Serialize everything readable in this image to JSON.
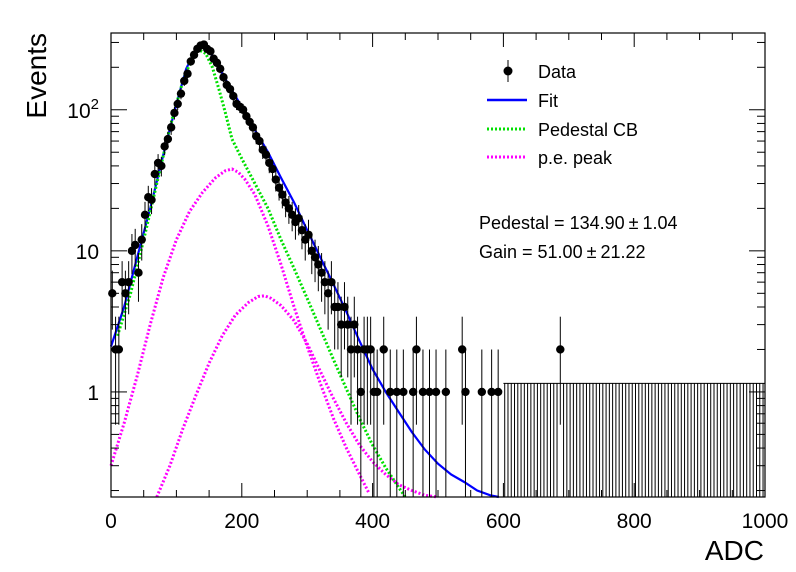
{
  "chart_data": {
    "type": "scatter",
    "xlabel": "ADC",
    "ylabel": "Events",
    "xlim": [
      0,
      1000
    ],
    "ylim": [
      0.18,
      350
    ],
    "yscale": "log",
    "grid": false,
    "legend_position": "top-right",
    "x_ticks": [
      {
        "value": 0,
        "label": "0"
      },
      {
        "value": 200,
        "label": "200"
      },
      {
        "value": 400,
        "label": "400"
      },
      {
        "value": 600,
        "label": "600"
      },
      {
        "value": 800,
        "label": "800"
      },
      {
        "value": 1000,
        "label": "1000"
      }
    ],
    "y_ticks": [
      {
        "value": 1,
        "label": "1"
      },
      {
        "value": 10,
        "label": "10"
      },
      {
        "value": 100,
        "label": "10",
        "exp": "2"
      }
    ],
    "legend": [
      {
        "label": "Data",
        "style": "marker",
        "color": "#000000"
      },
      {
        "label": "Fit",
        "style": "solid",
        "color": "#0000ff"
      },
      {
        "label": "Pedestal CB",
        "style": "dotted",
        "color": "#00e000"
      },
      {
        "label": "p.e. peak",
        "style": "dotted",
        "color": "#ff00ff"
      }
    ],
    "annotations": [
      {
        "text": "Pedestal = 134.90",
        "pm": "±",
        "err": "1.04"
      },
      {
        "text": "Gain = 51.00",
        "pm": "±",
        "err": "21.22"
      }
    ],
    "series": [
      {
        "name": "Data",
        "kind": "points",
        "color": "#000000",
        "bin_width": 5,
        "points": [
          [
            2,
            5
          ],
          [
            7,
            2
          ],
          [
            12,
            2
          ],
          [
            17,
            6
          ],
          [
            22,
            5
          ],
          [
            27,
            6
          ],
          [
            32,
            10
          ],
          [
            37,
            11
          ],
          [
            42,
            7
          ],
          [
            47,
            12
          ],
          [
            52,
            18
          ],
          [
            57,
            24
          ],
          [
            62,
            23
          ],
          [
            67,
            35
          ],
          [
            72,
            42
          ],
          [
            77,
            40
          ],
          [
            82,
            55
          ],
          [
            87,
            62
          ],
          [
            92,
            75
          ],
          [
            97,
            95
          ],
          [
            102,
            110
          ],
          [
            107,
            130
          ],
          [
            112,
            160
          ],
          [
            117,
            180
          ],
          [
            122,
            220
          ],
          [
            127,
            245
          ],
          [
            132,
            270
          ],
          [
            137,
            285
          ],
          [
            142,
            290
          ],
          [
            147,
            270
          ],
          [
            152,
            260
          ],
          [
            157,
            230
          ],
          [
            162,
            215
          ],
          [
            167,
            195
          ],
          [
            172,
            170
          ],
          [
            177,
            150
          ],
          [
            182,
            140
          ],
          [
            187,
            125
          ],
          [
            192,
            110
          ],
          [
            197,
            105
          ],
          [
            202,
            100
          ],
          [
            207,
            90
          ],
          [
            212,
            82
          ],
          [
            217,
            75
          ],
          [
            222,
            65
          ],
          [
            227,
            60
          ],
          [
            232,
            52
          ],
          [
            237,
            48
          ],
          [
            242,
            42
          ],
          [
            247,
            38
          ],
          [
            252,
            32
          ],
          [
            257,
            28
          ],
          [
            262,
            25
          ],
          [
            267,
            22
          ],
          [
            272,
            20
          ],
          [
            277,
            18
          ],
          [
            282,
            16
          ],
          [
            287,
            17
          ],
          [
            292,
            14
          ],
          [
            297,
            12
          ],
          [
            302,
            13
          ],
          [
            307,
            10
          ],
          [
            312,
            9
          ],
          [
            317,
            8
          ],
          [
            322,
            7
          ],
          [
            327,
            6
          ],
          [
            332,
            5
          ],
          [
            337,
            6
          ],
          [
            342,
            4
          ],
          [
            347,
            4
          ],
          [
            352,
            3
          ],
          [
            357,
            4
          ],
          [
            362,
            3
          ],
          [
            367,
            2
          ],
          [
            372,
            3
          ],
          [
            377,
            2
          ],
          [
            382,
            1
          ],
          [
            387,
            2
          ],
          [
            392,
            2
          ],
          [
            397,
            2
          ],
          [
            402,
            1
          ],
          [
            407,
            1
          ],
          [
            417,
            2
          ],
          [
            427,
            1
          ],
          [
            437,
            1
          ],
          [
            447,
            1
          ],
          [
            462,
            1
          ],
          [
            467,
            2
          ],
          [
            477,
            1
          ],
          [
            487,
            1
          ],
          [
            497,
            1
          ],
          [
            512,
            1
          ],
          [
            537,
            2
          ],
          [
            542,
            1
          ],
          [
            567,
            1
          ],
          [
            582,
            1
          ],
          [
            592,
            1
          ],
          [
            687,
            2
          ]
        ]
      },
      {
        "name": "Fit",
        "kind": "curve",
        "color": "#0000ff",
        "points": [
          [
            0,
            2.1
          ],
          [
            20,
            4
          ],
          [
            40,
            9
          ],
          [
            60,
            20
          ],
          [
            80,
            48
          ],
          [
            100,
            110
          ],
          [
            115,
            195
          ],
          [
            130,
            270
          ],
          [
            140,
            285
          ],
          [
            150,
            265
          ],
          [
            160,
            220
          ],
          [
            180,
            150
          ],
          [
            200,
            105
          ],
          [
            220,
            72
          ],
          [
            240,
            50
          ],
          [
            260,
            33
          ],
          [
            280,
            22
          ],
          [
            300,
            14
          ],
          [
            320,
            9
          ],
          [
            340,
            5.8
          ],
          [
            360,
            3.7
          ],
          [
            380,
            2.3
          ],
          [
            400,
            1.45
          ],
          [
            420,
            1.0
          ],
          [
            440,
            0.72
          ],
          [
            460,
            0.52
          ],
          [
            480,
            0.39
          ],
          [
            500,
            0.31
          ],
          [
            520,
            0.26
          ],
          [
            540,
            0.23
          ],
          [
            560,
            0.2
          ],
          [
            580,
            0.185
          ],
          [
            593,
            0.178
          ]
        ]
      },
      {
        "name": "Pedestal CB",
        "kind": "curve",
        "color": "#00e000",
        "points": [
          [
            10,
            2.5
          ],
          [
            30,
            5
          ],
          [
            50,
            12
          ],
          [
            70,
            30
          ],
          [
            90,
            75
          ],
          [
            110,
            160
          ],
          [
            125,
            240
          ],
          [
            135,
            265
          ],
          [
            145,
            250
          ],
          [
            155,
            200
          ],
          [
            165,
            140
          ],
          [
            175,
            95
          ],
          [
            185,
            62
          ],
          [
            200,
            45
          ],
          [
            220,
            30
          ],
          [
            240,
            20
          ],
          [
            260,
            12
          ],
          [
            280,
            7.5
          ],
          [
            300,
            4.6
          ],
          [
            320,
            2.8
          ],
          [
            340,
            1.7
          ],
          [
            360,
            1.05
          ],
          [
            380,
            0.65
          ],
          [
            400,
            0.42
          ],
          [
            420,
            0.29
          ],
          [
            440,
            0.21
          ],
          [
            450,
            0.18
          ]
        ]
      },
      {
        "name": "p.e. peak",
        "kind": "curve",
        "color": "#ff00ff",
        "points": [
          [
            0,
            0.3
          ],
          [
            20,
            0.6
          ],
          [
            40,
            1.3
          ],
          [
            60,
            3
          ],
          [
            80,
            6.5
          ],
          [
            100,
            12
          ],
          [
            120,
            19
          ],
          [
            140,
            26
          ],
          [
            160,
            33
          ],
          [
            175,
            37
          ],
          [
            185,
            38
          ],
          [
            195,
            36
          ],
          [
            205,
            32
          ],
          [
            220,
            25
          ],
          [
            240,
            15
          ],
          [
            260,
            8
          ],
          [
            280,
            4
          ],
          [
            300,
            2.1
          ],
          [
            320,
            1.15
          ],
          [
            340,
            0.65
          ],
          [
            360,
            0.4
          ],
          [
            380,
            0.26
          ],
          [
            395,
            0.19
          ]
        ]
      },
      {
        "name": "p.e. peak (2nd)",
        "kind": "curve",
        "color": "#ff00ff",
        "points": [
          [
            70,
            0.18
          ],
          [
            90,
            0.3
          ],
          [
            110,
            0.55
          ],
          [
            130,
            0.95
          ],
          [
            150,
            1.6
          ],
          [
            170,
            2.5
          ],
          [
            190,
            3.5
          ],
          [
            210,
            4.3
          ],
          [
            225,
            4.75
          ],
          [
            235,
            4.8
          ],
          [
            245,
            4.6
          ],
          [
            260,
            4.1
          ],
          [
            280,
            3.2
          ],
          [
            300,
            2.2
          ],
          [
            320,
            1.4
          ],
          [
            340,
            0.9
          ],
          [
            360,
            0.6
          ],
          [
            380,
            0.42
          ],
          [
            400,
            0.32
          ],
          [
            420,
            0.26
          ],
          [
            440,
            0.22
          ],
          [
            460,
            0.2
          ],
          [
            480,
            0.185
          ],
          [
            500,
            0.18
          ]
        ]
      }
    ]
  }
}
